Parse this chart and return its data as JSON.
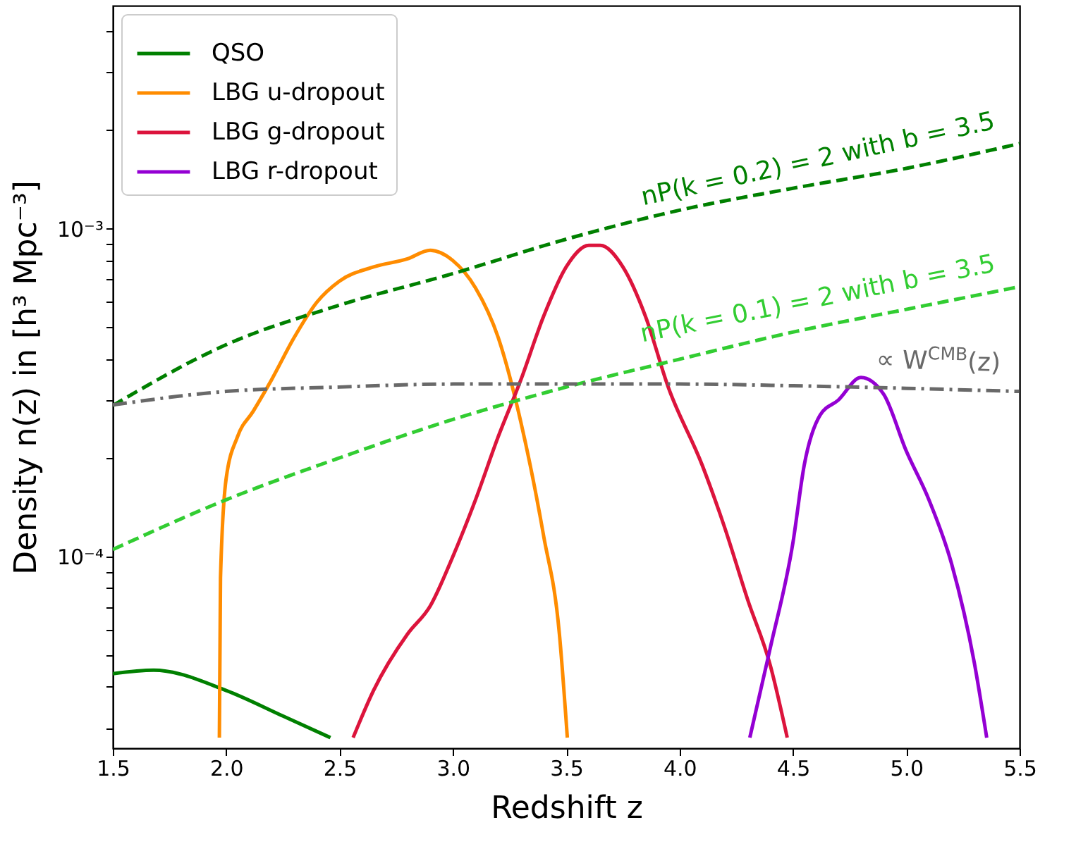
{
  "chart_data": {
    "type": "line",
    "xlabel": "Redshift z",
    "ylabel": "Density n(z) in [h³ Mpc⁻³]",
    "xlim": [
      1.5,
      5.5
    ],
    "ylim": [
      2.6e-05,
      0.0048
    ],
    "log": "y",
    "legend": "top left",
    "xticks": [
      {
        "value": 1.5,
        "label": "1.5"
      },
      {
        "value": 2,
        "label": "2.0"
      },
      {
        "value": 2.5,
        "label": "2.5"
      },
      {
        "value": 3,
        "label": "3.0"
      },
      {
        "value": 3.5,
        "label": "3.5"
      },
      {
        "value": 4,
        "label": "4.0"
      },
      {
        "value": 4.5,
        "label": "4.5"
      },
      {
        "value": 5,
        "label": "5.0"
      },
      {
        "value": 5.5,
        "label": "5.5"
      }
    ],
    "yticks": [
      {
        "value": 3e-05,
        "label": null
      },
      {
        "value": 4e-05,
        "label": null
      },
      {
        "value": 5e-05,
        "label": null
      },
      {
        "value": 6e-05,
        "label": null
      },
      {
        "value": 7e-05,
        "label": null
      },
      {
        "value": 8e-05,
        "label": null
      },
      {
        "value": 9e-05,
        "label": null
      },
      {
        "value": 0.0001,
        "label": "10⁻⁴"
      },
      {
        "value": 0.0002,
        "label": null
      },
      {
        "value": 0.0003,
        "label": null
      },
      {
        "value": 0.0004,
        "label": null
      },
      {
        "value": 0.0005,
        "label": null
      },
      {
        "value": 0.0006,
        "label": null
      },
      {
        "value": 0.0007,
        "label": null
      },
      {
        "value": 0.0008,
        "label": null
      },
      {
        "value": 0.0009,
        "label": null
      },
      {
        "value": 0.001,
        "label": "10⁻³"
      },
      {
        "value": 0.002,
        "label": null
      },
      {
        "value": 0.003,
        "label": null
      },
      {
        "value": 0.004,
        "label": null
      }
    ],
    "series": [
      {
        "name": "QSO",
        "color": "#008000",
        "line_style": "solid",
        "x": [
          1.5,
          1.68,
          2.0,
          2.25,
          2.46
        ],
        "values": [
          4.39e-05,
          4.5e-05,
          3.9e-05,
          3.26e-05,
          2.8e-05
        ]
      },
      {
        "name": "LBG u-dropout",
        "color": "#ff8c00",
        "line_style": "solid",
        "x": [
          1.97,
          1.975,
          2.0,
          2.05,
          2.12,
          2.2,
          2.3,
          2.4,
          2.5,
          2.65,
          2.8,
          2.9,
          3.0,
          3.1,
          3.2,
          3.3,
          3.4,
          3.47,
          3.505
        ],
        "values": [
          2.8e-05,
          8.6e-05,
          0.000173,
          0.000232,
          0.000278,
          0.000346,
          0.000466,
          0.000597,
          0.000693,
          0.000765,
          0.00081,
          0.00086,
          0.0008,
          0.00066,
          0.000466,
          0.000257,
          0.000116,
          5.8e-05,
          2.8e-05
        ]
      },
      {
        "name": "LBG g-dropout",
        "color": "#dc143c",
        "line_style": "solid",
        "x": [
          2.56,
          2.65,
          2.8,
          2.9,
          3.0,
          3.1,
          3.2,
          3.3,
          3.4,
          3.5,
          3.6,
          3.65,
          3.75,
          3.85,
          3.95,
          4.1,
          4.2,
          4.3,
          4.4,
          4.475
        ],
        "values": [
          2.8e-05,
          3.9e-05,
          5.8e-05,
          7.06e-05,
          0.0001,
          0.000149,
          0.000232,
          0.000346,
          0.00054,
          0.000765,
          0.00089,
          0.00089,
          0.000765,
          0.00054,
          0.000329,
          0.00019,
          0.000122,
          7.4e-05,
          4.66e-05,
          2.8e-05
        ]
      },
      {
        "name": "LBG r-dropout",
        "color": "#9400d3",
        "line_style": "solid",
        "x": [
          4.31,
          4.4,
          4.5,
          4.55,
          4.62,
          4.7,
          4.8,
          4.9,
          5.0,
          5.1,
          5.2,
          5.3,
          5.355
        ],
        "values": [
          2.8e-05,
          5.25e-05,
          0.00011,
          0.00019,
          0.00027,
          0.0003,
          0.000352,
          0.000313,
          0.00021,
          0.000149,
          9.5e-05,
          4.75e-05,
          2.8e-05
        ]
      },
      {
        "name": "nP(k = 0.2) = 2 with b = 3.5",
        "color": "#008000",
        "line_style": "dashed",
        "x": [
          1.5,
          2.0,
          2.5,
          3.0,
          3.5,
          4.0,
          4.5,
          5.0,
          5.5
        ],
        "values": [
          0.000289,
          0.000443,
          0.000585,
          0.00073,
          0.00093,
          0.00114,
          0.00133,
          0.00153,
          0.00182
        ]
      },
      {
        "name": "nP(k = 0.1) = 2 with b = 3.5",
        "color": "#32cd32",
        "line_style": "dashed",
        "x": [
          1.5,
          2.0,
          2.5,
          3.0,
          3.5,
          4.0,
          4.5,
          5.0,
          5.5
        ],
        "values": [
          0.000105,
          0.000149,
          0.0002,
          0.000262,
          0.000329,
          0.0004,
          0.000484,
          0.000568,
          0.000666
        ]
      },
      {
        "name": "∝ W$^{CMB}$(z)",
        "color": "#696969",
        "line_style": "dashdot",
        "x": [
          1.5,
          2.0,
          2.5,
          3.0,
          3.5,
          4.0,
          4.5,
          5.0,
          5.5
        ],
        "values": [
          0.00029,
          0.000319,
          0.000329,
          0.000336,
          0.000336,
          0.000336,
          0.000332,
          0.000326,
          0.000319
        ]
      }
    ]
  }
}
